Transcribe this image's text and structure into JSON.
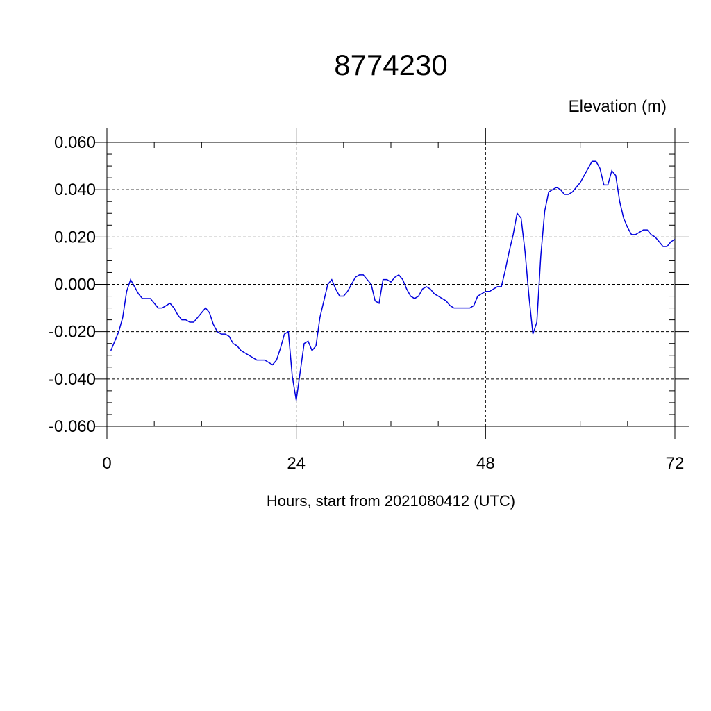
{
  "chart_data": {
    "type": "line",
    "title": "8774230",
    "ylabel": "Elevation (m)",
    "xlabel": "Hours, start from 2021080412 (UTC)",
    "xlim": [
      0,
      72
    ],
    "xticks": [
      0,
      24,
      48,
      72
    ],
    "ylim": [
      -0.06,
      0.06
    ],
    "yticks": [
      {
        "value": -0.06,
        "label": "-0.060"
      },
      {
        "value": -0.04,
        "label": "-0.040"
      },
      {
        "value": -0.02,
        "label": "-0.020"
      },
      {
        "value": 0,
        "label": "0.000"
      },
      {
        "value": 0.02,
        "label": "0.020"
      },
      {
        "value": 0.04,
        "label": "0.040"
      },
      {
        "value": 0.06,
        "label": "0.060"
      }
    ],
    "grid": true,
    "x": [
      0.5,
      1,
      1.5,
      2,
      2.5,
      3,
      3.5,
      4,
      4.5,
      5,
      5.5,
      6,
      6.5,
      7,
      7.5,
      8,
      8.5,
      9,
      9.5,
      10,
      10.5,
      11,
      11.5,
      12,
      12.5,
      13,
      13.5,
      14,
      14.5,
      15,
      15.5,
      16,
      16.5,
      17,
      17.5,
      18,
      18.5,
      19,
      19.5,
      20,
      20.5,
      21,
      21.5,
      22,
      22.5,
      23,
      23.5,
      24,
      24.5,
      25,
      25.5,
      26,
      26.5,
      27,
      27.5,
      28,
      28.5,
      29,
      29.5,
      30,
      30.5,
      31,
      31.5,
      32,
      32.5,
      33,
      33.5,
      34,
      34.5,
      35,
      35.5,
      36,
      36.5,
      37,
      37.5,
      38,
      38.5,
      39,
      39.5,
      40,
      40.5,
      41,
      41.5,
      42,
      42.5,
      43,
      43.5,
      44,
      44.5,
      45,
      45.5,
      46,
      46.5,
      47,
      47.5,
      48,
      48.5,
      49,
      49.5,
      50,
      50.5,
      51,
      51.5,
      52,
      52.5,
      53,
      53.5,
      54,
      54.5,
      55,
      55.5,
      56,
      56.5,
      57,
      57.5,
      58,
      58.5,
      59,
      59.5,
      60,
      60.5,
      61,
      61.5,
      62,
      62.5,
      63,
      63.5,
      64,
      64.5,
      65,
      65.5,
      66,
      66.5,
      67,
      67.5,
      68,
      68.5,
      69,
      69.5,
      70,
      70.5,
      71,
      71.5,
      72
    ],
    "series": [
      {
        "name": "Elevation",
        "color": "#0000dd",
        "values": [
          -0.028,
          -0.024,
          -0.02,
          -0.014,
          -0.003,
          0.002,
          -0.001,
          -0.004,
          -0.006,
          -0.006,
          -0.006,
          -0.008,
          -0.01,
          -0.01,
          -0.009,
          -0.008,
          -0.01,
          -0.013,
          -0.015,
          -0.015,
          -0.016,
          -0.016,
          -0.014,
          -0.012,
          -0.01,
          -0.012,
          -0.017,
          -0.02,
          -0.021,
          -0.021,
          -0.022,
          -0.025,
          -0.026,
          -0.028,
          -0.029,
          -0.03,
          -0.031,
          -0.032,
          -0.032,
          -0.032,
          -0.033,
          -0.034,
          -0.032,
          -0.027,
          -0.021,
          -0.02,
          -0.039,
          -0.049,
          -0.037,
          -0.025,
          -0.024,
          -0.028,
          -0.026,
          -0.014,
          -0.007,
          0,
          0.002,
          -0.002,
          -0.005,
          -0.005,
          -0.003,
          0,
          0.003,
          0.004,
          0.004,
          0.002,
          0,
          -0.007,
          -0.008,
          0.002,
          0.002,
          0.001,
          0.003,
          0.004,
          0.002,
          -0.002,
          -0.005,
          -0.006,
          -0.005,
          -0.002,
          -0.001,
          -0.002,
          -0.004,
          -0.005,
          -0.006,
          -0.007,
          -0.009,
          -0.01,
          -0.01,
          -0.01,
          -0.01,
          -0.01,
          -0.009,
          -0.005,
          -0.004,
          -0.003,
          -0.003,
          -0.002,
          -0.001,
          -0.001,
          0.006,
          0.014,
          0.021,
          0.03,
          0.028,
          0.014,
          -0.005,
          -0.021,
          -0.016,
          0.012,
          0.031,
          0.039,
          0.04,
          0.041,
          0.04,
          0.038,
          0.038,
          0.039,
          0.041,
          0.043,
          0.046,
          0.049,
          0.052,
          0.052,
          0.049,
          0.042,
          0.042,
          0.048,
          0.046,
          0.035,
          0.028,
          0.024,
          0.021,
          0.021,
          0.022,
          0.023,
          0.023,
          0.021,
          0.02,
          0.018,
          0.016,
          0.016,
          0.018,
          0.019
        ]
      }
    ]
  }
}
